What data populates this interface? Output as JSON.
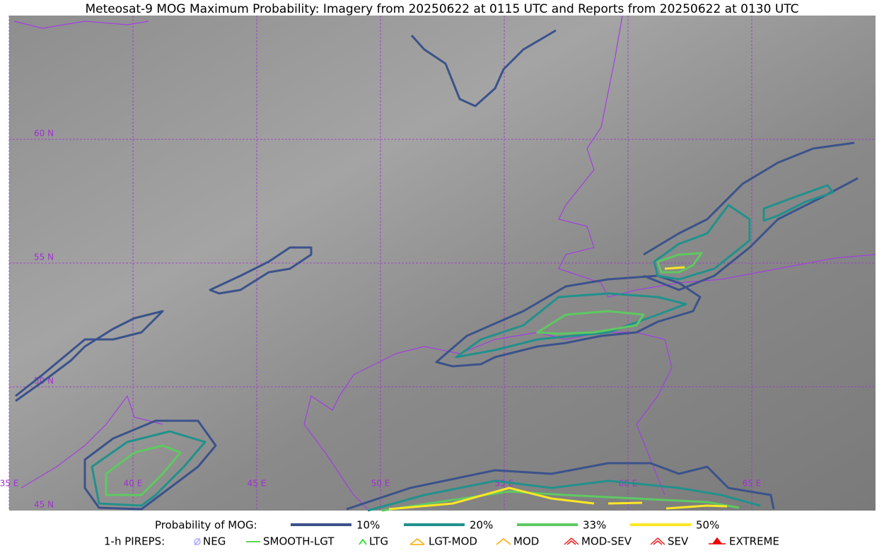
{
  "title": "Meteosat-9 MOG Maximum Probability: Imagery from 20250622 at 0115 UTC and Reports from 20250622 at 0130 UTC",
  "map": {
    "lat_labels": [
      "60 N",
      "55 N",
      "50 N",
      "45 N"
    ],
    "lon_labels": [
      "35 E",
      "40 E",
      "45 E",
      "50 E",
      "55 E",
      "60 E",
      "65 E"
    ]
  },
  "legend": {
    "probability": {
      "label": "Probability of MOG:",
      "items": [
        {
          "label": "10%",
          "color": "#3b528b"
        },
        {
          "label": "20%",
          "color": "#21918c"
        },
        {
          "label": "33%",
          "color": "#5ec962"
        },
        {
          "label": "50%",
          "color": "#fde725"
        }
      ]
    },
    "pireps": {
      "label": "1-h PIREPS:",
      "items": [
        {
          "label": "NEG",
          "color": "#aaaaff"
        },
        {
          "label": "SMOOTH-LGT",
          "color": "#22cc22"
        },
        {
          "label": "LTG",
          "color": "#00dd00"
        },
        {
          "label": "LGT-MOD",
          "color": "#ffaa00"
        },
        {
          "label": "MOD",
          "color": "#ffaa00"
        },
        {
          "label": "MOD-SEV",
          "color": "#ee2222"
        },
        {
          "label": "SEV",
          "color": "#ee2222"
        },
        {
          "label": "EXTREME",
          "color": "#ee0000"
        }
      ]
    }
  }
}
